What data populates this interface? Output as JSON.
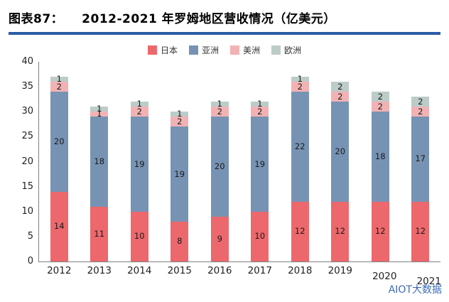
{
  "header": {
    "label": "图表87：",
    "title": "2012-2021 年罗姆地区营收情况（亿美元）",
    "underline_color": "#2b5ca8"
  },
  "watermark": {
    "text": "AIOT大数据",
    "color": "#3b6cb4"
  },
  "chart_data": {
    "type": "bar",
    "stacked": true,
    "title": "2012-2021 年罗姆地区营收情况（亿美元）",
    "categories": [
      "2012",
      "2013",
      "2014",
      "2015",
      "2016",
      "2017",
      "2018",
      "2019",
      "2020",
      "2021"
    ],
    "series": [
      {
        "name": "日本",
        "color": "#ec686c",
        "values": [
          14,
          11,
          10,
          8,
          9,
          10,
          12,
          12,
          12,
          12
        ]
      },
      {
        "name": "亚洲",
        "color": "#7793b4",
        "values": [
          20,
          18,
          19,
          19,
          20,
          19,
          22,
          20,
          18,
          17
        ]
      },
      {
        "name": "美洲",
        "color": "#f2b2b4",
        "values": [
          2,
          1,
          2,
          2,
          2,
          2,
          2,
          2,
          2,
          2
        ]
      },
      {
        "name": "欧洲",
        "color": "#bcccc9",
        "values": [
          1,
          1,
          1,
          1,
          1,
          1,
          1,
          2,
          2,
          2
        ]
      }
    ],
    "xlabel": "",
    "ylabel": "",
    "ylim": [
      0,
      40
    ],
    "yticks": [
      0,
      5,
      10,
      15,
      20,
      25,
      30,
      35,
      40
    ],
    "grid": false,
    "legend_position": "top"
  }
}
